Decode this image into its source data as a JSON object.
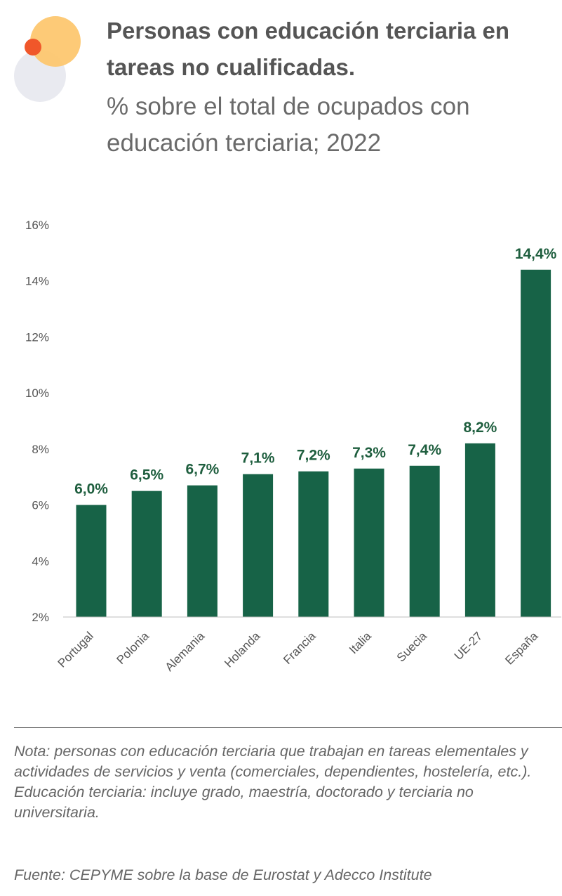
{
  "header": {
    "title": "Personas con educación terciaria en tareas no cualificadas.",
    "subtitle": "% sobre el total de ocupados con educación terciaria; 2022"
  },
  "colors": {
    "bar": "#176347",
    "label": "#1e5e3e",
    "axis_text": "#555555",
    "logo_yellow": "#fdc56b",
    "logo_gray": "#e9eaf0",
    "logo_red": "#f0572a"
  },
  "chart_data": {
    "type": "bar",
    "categories": [
      "Portugal",
      "Polonia",
      "Alemania",
      "Holanda",
      "Francia",
      "Italia",
      "Suecia",
      "UE-27",
      "España"
    ],
    "values": [
      6.0,
      6.5,
      6.7,
      7.1,
      7.2,
      7.3,
      7.4,
      8.2,
      14.4
    ],
    "data_labels": [
      "6,0%",
      "6,5%",
      "6,7%",
      "7,1%",
      "7,2%",
      "7,3%",
      "7,4%",
      "8,2%",
      "14,4%"
    ],
    "yticks": [
      "2%",
      "4%",
      "6%",
      "8%",
      "10%",
      "12%",
      "14%",
      "16%"
    ],
    "ylim": [
      2,
      16
    ],
    "grid": false,
    "legend": "none",
    "title": "Personas con educación terciaria en tareas no cualificadas.",
    "subtitle": "% sobre el total de ocupados con educación terciaria; 2022"
  },
  "footer": {
    "note_prefix": "Nota",
    "note_text": ": personas con educación terciaria que trabajan en tareas elementales y actividades de servicios y venta (comerciales, dependientes, hostelería, etc.). Educación terciaria: incluye grado, maestría, doctorado y terciaria no universitaria.",
    "source_prefix": "Fuente",
    "source_text": ": CEPYME sobre la base de Eurostat y Adecco Institute"
  }
}
